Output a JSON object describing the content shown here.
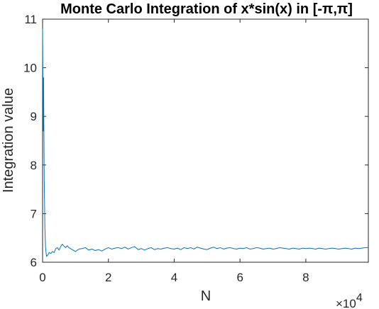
{
  "chart_data": {
    "type": "line",
    "title": "Monte Carlo Integration of x*sin(x) in [-π,π]",
    "xlabel": "N",
    "ylabel": "Integration value",
    "x_multiplier_label": "×10",
    "x_multiplier_exponent": "4",
    "xlim": [
      0,
      99000
    ],
    "ylim": [
      6,
      11
    ],
    "x_ticks": [
      0,
      20000,
      40000,
      60000,
      80000
    ],
    "x_tick_labels": [
      "0",
      "2",
      "4",
      "6",
      "8"
    ],
    "y_ticks": [
      6,
      7,
      8,
      9,
      10,
      11
    ],
    "y_tick_labels": [
      "6",
      "7",
      "8",
      "9",
      "10",
      "11"
    ],
    "grid": false,
    "series": [
      {
        "color": "#0072bd",
        "x": [
          0,
          100,
          200,
          300,
          400,
          500,
          700,
          900,
          1200,
          1600,
          2000,
          2500,
          3000,
          3500,
          4000,
          4500,
          5000,
          5500,
          6000,
          6500,
          7000,
          7500,
          8000,
          9000,
          10000,
          11000,
          12000,
          13000,
          14000,
          15000,
          16000,
          17000,
          18000,
          19000,
          20000,
          21000,
          22000,
          23000,
          24000,
          25000,
          26000,
          27000,
          28000,
          29000,
          30000,
          31000,
          32000,
          33000,
          34000,
          35000,
          36000,
          37000,
          38000,
          39000,
          40000,
          41000,
          42000,
          43000,
          44000,
          45000,
          46000,
          47000,
          48000,
          49000,
          50000,
          51000,
          52000,
          53000,
          54000,
          55000,
          56000,
          57000,
          58000,
          59000,
          60000,
          61000,
          62000,
          63000,
          64000,
          65000,
          66000,
          67000,
          68000,
          69000,
          70000,
          71000,
          72000,
          73000,
          74000,
          75000,
          76000,
          77000,
          78000,
          79000,
          80000,
          81000,
          82000,
          83000,
          84000,
          85000,
          86000,
          87000,
          88000,
          89000,
          90000,
          91000,
          92000,
          93000,
          94000,
          95000,
          96000,
          97000,
          98000,
          99000
        ],
        "values": [
          10.8,
          9.6,
          8.7,
          9.8,
          8.7,
          7.7,
          6.7,
          6.3,
          6.12,
          6.15,
          6.2,
          6.18,
          6.22,
          6.2,
          6.28,
          6.3,
          6.25,
          6.32,
          6.37,
          6.33,
          6.3,
          6.34,
          6.3,
          6.26,
          6.22,
          6.27,
          6.28,
          6.3,
          6.25,
          6.27,
          6.24,
          6.26,
          6.23,
          6.27,
          6.3,
          6.27,
          6.29,
          6.3,
          6.28,
          6.31,
          6.27,
          6.3,
          6.32,
          6.26,
          6.28,
          6.25,
          6.28,
          6.3,
          6.26,
          6.28,
          6.27,
          6.29,
          6.3,
          6.28,
          6.27,
          6.29,
          6.26,
          6.3,
          6.28,
          6.3,
          6.27,
          6.31,
          6.29,
          6.27,
          6.26,
          6.29,
          6.31,
          6.28,
          6.3,
          6.27,
          6.29,
          6.3,
          6.28,
          6.27,
          6.29,
          6.28,
          6.3,
          6.27,
          6.28,
          6.3,
          6.29,
          6.27,
          6.28,
          6.29,
          6.27,
          6.28,
          6.3,
          6.29,
          6.28,
          6.27,
          6.29,
          6.28,
          6.27,
          6.29,
          6.28,
          6.29,
          6.28,
          6.27,
          6.29,
          6.28,
          6.27,
          6.28,
          6.29,
          6.28,
          6.27,
          6.28,
          6.29,
          6.28,
          6.27,
          6.29,
          6.28,
          6.29,
          6.3,
          6.3
        ]
      }
    ]
  }
}
